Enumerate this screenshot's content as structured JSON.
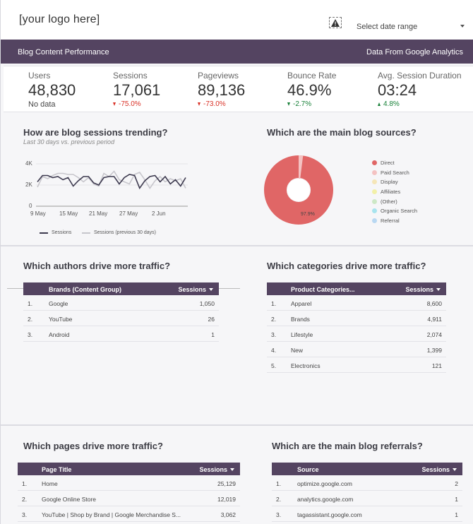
{
  "header": {
    "logo_text": "[your logo here]",
    "date_range_placeholder": "Select date range"
  },
  "banner": {
    "title": "Blog Content Performance",
    "source": "Data From Google Analytics"
  },
  "kpis": [
    {
      "label": "Users",
      "value": "48,830",
      "delta": "No data",
      "trend": "none"
    },
    {
      "label": "Sessions",
      "value": "17,061",
      "delta": "-75.0%",
      "trend": "down"
    },
    {
      "label": "Pageviews",
      "value": "89,136",
      "delta": "-73.0%",
      "trend": "down"
    },
    {
      "label": "Bounce Rate",
      "value": "46.9%",
      "delta": "-2.7%",
      "trend": "down-good"
    },
    {
      "label": "Avg. Session Duration",
      "value": "03:24",
      "delta": "4.8%",
      "trend": "up"
    }
  ],
  "sessions_trend": {
    "title": "How are blog sessions trending?",
    "subtitle": "Last 30 days vs. previous period",
    "y_ticks": [
      "4K",
      "2K",
      "0"
    ],
    "x_ticks": [
      "9 May",
      "15 May",
      "21 May",
      "27 May",
      "2 Jun"
    ],
    "legend": [
      "Sessions",
      "Sessions (previous 30 days)"
    ],
    "colors": {
      "current": "#3d3a4f",
      "previous": "#c7c6cc"
    }
  },
  "sources": {
    "title": "Which are the main blog sources?",
    "center_label": "97.9%",
    "legend": [
      {
        "name": "Direct",
        "color": "#e06666"
      },
      {
        "name": "Paid Search",
        "color": "#f4c2c2"
      },
      {
        "name": "Display",
        "color": "#f5e6b8"
      },
      {
        "name": "Affiliates",
        "color": "#f2f0a8"
      },
      {
        "name": "(Other)",
        "color": "#cde8c6"
      },
      {
        "name": "Organic Search",
        "color": "#a8e4ee"
      },
      {
        "name": "Referral",
        "color": "#b9d8f2"
      }
    ]
  },
  "authors": {
    "title": "Which authors drive more traffic?",
    "col1": "Brands (Content Group)",
    "col2": "Sessions",
    "rows": [
      {
        "idx": "1.",
        "name": "Google",
        "value": "1,050"
      },
      {
        "idx": "2.",
        "name": "YouTube",
        "value": "26"
      },
      {
        "idx": "3.",
        "name": "Android",
        "value": "1"
      }
    ]
  },
  "categories": {
    "title": "Which categories drive more traffic?",
    "col1": "Product Categories...",
    "col2": "Sessions",
    "rows": [
      {
        "idx": "1.",
        "name": "Apparel",
        "value": "8,600"
      },
      {
        "idx": "2.",
        "name": "Brands",
        "value": "4,911"
      },
      {
        "idx": "3.",
        "name": "Lifestyle",
        "value": "2,074"
      },
      {
        "idx": "4.",
        "name": "New",
        "value": "1,399"
      },
      {
        "idx": "5.",
        "name": "Electronics",
        "value": "121"
      }
    ]
  },
  "pages": {
    "title": "Which pages drive more traffic?",
    "col1": "Page Title",
    "col2": "Sessions",
    "rows": [
      {
        "idx": "1.",
        "name": "Home",
        "value": "25,129"
      },
      {
        "idx": "2.",
        "name": "Google Online Store",
        "value": "12,019"
      },
      {
        "idx": "3.",
        "name": "YouTube | Shop by Brand | Google Merchandise S...",
        "value": "3,062"
      }
    ]
  },
  "referrals": {
    "title": "Which are the main blog referrals?",
    "col1": "Source",
    "col2": "Sessions",
    "rows": [
      {
        "idx": "1.",
        "name": "optimize.google.com",
        "value": "2"
      },
      {
        "idx": "2.",
        "name": "analytics.google.com",
        "value": "1"
      },
      {
        "idx": "3.",
        "name": "tagassistant.google.com",
        "value": "1"
      }
    ]
  }
}
